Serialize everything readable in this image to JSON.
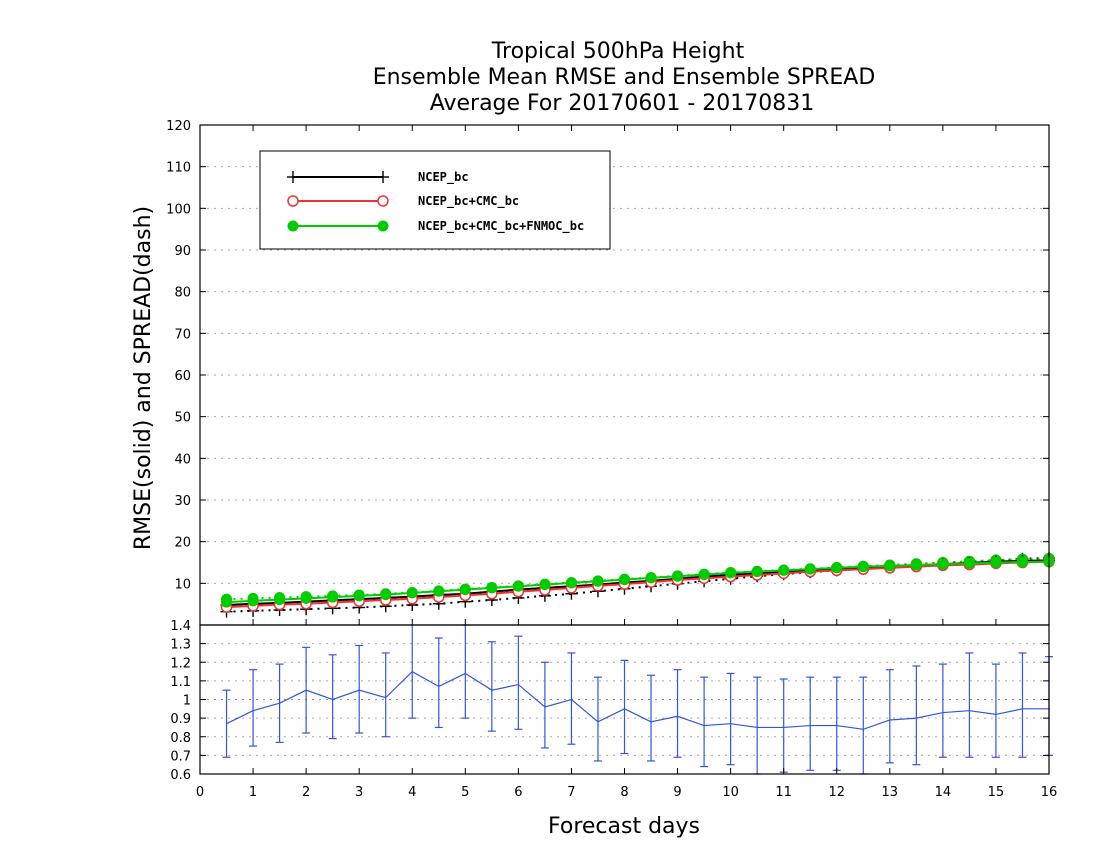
{
  "chart_data": {
    "type": "line",
    "title": [
      "Tropical 500hPa Height",
      "Ensemble Mean RMSE and Ensemble SPREAD",
      "Average For 20170601 - 20170831"
    ],
    "xlabel": "Forecast days",
    "ylabel": "RMSE(solid) and SPREAD(dash)",
    "xlim": [
      0,
      16
    ],
    "ylim": [
      0,
      120
    ],
    "x_ticks": [
      "0",
      "1",
      "2",
      "3",
      "4",
      "5",
      "6",
      "7",
      "8",
      "9",
      "10",
      "11",
      "12",
      "13",
      "14",
      "15",
      "16"
    ],
    "y_ticks": [
      "10",
      "20",
      "30",
      "40",
      "50",
      "60",
      "70",
      "80",
      "90",
      "100",
      "110",
      "120"
    ],
    "grid": true,
    "legend_position": "top-left",
    "x": [
      0.5,
      1.0,
      1.5,
      2.0,
      2.5,
      3.0,
      3.5,
      4.0,
      4.5,
      5.0,
      5.5,
      6.0,
      6.5,
      7.0,
      7.5,
      8.0,
      8.5,
      9.0,
      9.5,
      10.0,
      10.5,
      11.0,
      11.5,
      12.0,
      12.5,
      13.0,
      13.5,
      14.0,
      14.5,
      15.0,
      15.5,
      16.0
    ],
    "series": [
      {
        "name": "NCEP_bc",
        "color": "#000000",
        "marker": "plus",
        "rmse": [
          4.8,
          5.1,
          5.3,
          5.6,
          5.9,
          6.2,
          6.5,
          6.8,
          7.2,
          7.5,
          8.0,
          8.5,
          8.9,
          9.3,
          9.7,
          10.2,
          10.6,
          11.1,
          11.6,
          12.0,
          12.4,
          12.8,
          13.1,
          13.4,
          13.7,
          14.0,
          14.3,
          14.6,
          14.9,
          15.2,
          15.4,
          15.5
        ],
        "spread": [
          3.2,
          3.4,
          3.6,
          3.8,
          4.0,
          4.2,
          4.5,
          4.8,
          5.1,
          5.6,
          6.0,
          6.5,
          7.0,
          7.5,
          8.1,
          8.7,
          9.3,
          9.9,
          10.5,
          11.1,
          11.7,
          12.2,
          12.7,
          13.1,
          13.5,
          13.9,
          14.3,
          14.7,
          15.1,
          15.5,
          15.9,
          16.1
        ]
      },
      {
        "name": "NCEP_bc+CMC_bc",
        "color": "#ee3333",
        "marker": "open-circle",
        "rmse": [
          4.3,
          4.6,
          4.9,
          5.1,
          5.4,
          5.7,
          6.0,
          6.3,
          6.7,
          7.1,
          7.5,
          8.0,
          8.4,
          8.9,
          9.4,
          9.8,
          10.3,
          10.8,
          11.2,
          11.6,
          12.0,
          12.4,
          12.8,
          13.1,
          13.4,
          13.7,
          14.0,
          14.3,
          14.5,
          14.8,
          15.0,
          15.2
        ],
        "spread": [
          4.4,
          4.7,
          5.0,
          5.3,
          5.6,
          5.9,
          6.2,
          6.5,
          6.9,
          7.3,
          7.7,
          8.2,
          8.6,
          9.1,
          9.6,
          10.1,
          10.6,
          11.1,
          11.6,
          12.1,
          12.5,
          12.9,
          13.3,
          13.7,
          14.0,
          14.3,
          14.6,
          14.9,
          15.2,
          15.5,
          15.7,
          15.9
        ]
      },
      {
        "name": "NCEP_bc+CMC_bc+FNMOC_bc",
        "color": "#00cc00",
        "marker": "filled-circle",
        "rmse": [
          5.5,
          5.8,
          6.1,
          6.4,
          6.7,
          7.0,
          7.3,
          7.7,
          8.1,
          8.5,
          8.9,
          9.3,
          9.7,
          10.1,
          10.5,
          10.9,
          11.3,
          11.7,
          12.1,
          12.5,
          12.8,
          13.1,
          13.4,
          13.7,
          14.0,
          14.2,
          14.4,
          14.6,
          14.8,
          15.0,
          15.1,
          15.2
        ],
        "spread": [
          6.2,
          6.4,
          6.6,
          6.8,
          7.0,
          7.2,
          7.5,
          7.8,
          8.2,
          8.6,
          9.0,
          9.4,
          9.8,
          10.2,
          10.6,
          11.0,
          11.4,
          11.8,
          12.2,
          12.6,
          12.9,
          13.2,
          13.5,
          13.8,
          14.1,
          14.4,
          14.7,
          15.0,
          15.3,
          15.6,
          15.8,
          16.0
        ]
      }
    ],
    "ratio_panel": {
      "type": "line-errorbar",
      "ylim": [
        0.6,
        1.4
      ],
      "y_ticks": [
        "0.6",
        "0.7",
        "0.8",
        "0.9",
        "1",
        "1.1",
        "1.2",
        "1.3",
        "1.4"
      ],
      "color": "#3355dd",
      "x": [
        0.5,
        1.0,
        1.5,
        2.0,
        2.5,
        3.0,
        3.5,
        4.0,
        4.5,
        5.0,
        5.5,
        6.0,
        6.5,
        7.0,
        7.5,
        8.0,
        8.5,
        9.0,
        9.5,
        10.0,
        10.5,
        11.0,
        11.5,
        12.0,
        12.5,
        13.0,
        13.5,
        14.0,
        14.5,
        15.0,
        15.5,
        16.0
      ],
      "values": [
        0.87,
        0.94,
        0.98,
        1.05,
        1.0,
        1.05,
        1.01,
        1.15,
        1.07,
        1.14,
        1.05,
        1.08,
        0.96,
        1.0,
        0.88,
        0.95,
        0.88,
        0.91,
        0.86,
        0.87,
        0.85,
        0.85,
        0.86,
        0.86,
        0.84,
        0.89,
        0.9,
        0.93,
        0.94,
        0.92,
        0.95,
        0.95
      ],
      "low": [
        0.69,
        0.75,
        0.77,
        0.82,
        0.79,
        0.82,
        0.8,
        0.9,
        0.85,
        0.9,
        0.83,
        0.84,
        0.74,
        0.76,
        0.67,
        0.71,
        0.67,
        0.69,
        0.64,
        0.65,
        0.6,
        0.61,
        0.62,
        0.62,
        0.6,
        0.66,
        0.65,
        0.69,
        0.69,
        0.69,
        0.69,
        0.7
      ],
      "high": [
        1.05,
        1.16,
        1.19,
        1.28,
        1.24,
        1.29,
        1.25,
        1.41,
        1.33,
        1.4,
        1.31,
        1.34,
        1.2,
        1.25,
        1.12,
        1.21,
        1.13,
        1.16,
        1.12,
        1.14,
        1.12,
        1.11,
        1.12,
        1.12,
        1.12,
        1.16,
        1.18,
        1.19,
        1.25,
        1.19,
        1.25,
        1.23
      ]
    }
  }
}
